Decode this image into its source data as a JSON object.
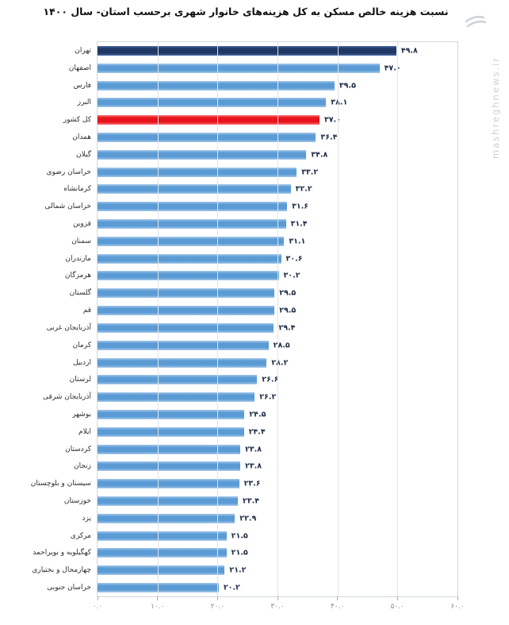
{
  "watermark": {
    "text": "mashreghnews.ir"
  },
  "colors": {
    "bar_blue": "#5B9BD5",
    "bar_navy": "#1F3864",
    "bar_red": "#E8131B",
    "value_label": "#1C2A45",
    "gridline": "#E0E4E8",
    "tick_label": "#8B9096"
  },
  "chart_data": {
    "type": "bar",
    "orientation": "horizontal",
    "title": "نسبت هزینه خالص مسکن به کل هزینه‌های خانوار شهری برحسب استان- سال ۱۴۰۰",
    "xlabel": "",
    "ylabel": "",
    "xlim": [
      0,
      60
    ],
    "grid": true,
    "x_ticks": [
      0,
      10,
      20,
      30,
      40,
      50,
      60
    ],
    "x_tick_labels": [
      "۰.۰",
      "۱۰.۰",
      "۲۰.۰",
      "۳۰.۰",
      "۴۰.۰",
      "۵۰.۰",
      "۶۰.۰"
    ],
    "rows": [
      {
        "label": "تهران",
        "value": 49.8,
        "display": "۴۹.۸",
        "color": "navy"
      },
      {
        "label": "اصفهان",
        "value": 47.0,
        "display": "۴۷.۰",
        "color": "blue"
      },
      {
        "label": "فارس",
        "value": 39.5,
        "display": "۳۹.۵",
        "color": "blue"
      },
      {
        "label": "البرز",
        "value": 38.1,
        "display": "۳۸.۱",
        "color": "blue"
      },
      {
        "label": "کل کشور",
        "value": 37.0,
        "display": "۳۷.۰",
        "color": "red"
      },
      {
        "label": "همدان",
        "value": 36.4,
        "display": "۳۶.۴",
        "color": "blue"
      },
      {
        "label": "گیلان",
        "value": 34.8,
        "display": "۳۴.۸",
        "color": "blue"
      },
      {
        "label": "خراسان رضوی",
        "value": 33.2,
        "display": "۳۳.۲",
        "color": "blue"
      },
      {
        "label": "کرمانشاه",
        "value": 32.2,
        "display": "۳۲.۲",
        "color": "blue"
      },
      {
        "label": "خراسان شمالی",
        "value": 31.6,
        "display": "۳۱.۶",
        "color": "blue"
      },
      {
        "label": "قزوین",
        "value": 31.4,
        "display": "۳۱.۴",
        "color": "blue"
      },
      {
        "label": "سمنان",
        "value": 31.1,
        "display": "۳۱.۱",
        "color": "blue"
      },
      {
        "label": "مازندران",
        "value": 30.6,
        "display": "۳۰.۶",
        "color": "blue"
      },
      {
        "label": "هرمزگان",
        "value": 30.2,
        "display": "۳۰.۲",
        "color": "blue"
      },
      {
        "label": "گلستان",
        "value": 29.5,
        "display": "۲۹.۵",
        "color": "blue"
      },
      {
        "label": "قم",
        "value": 29.5,
        "display": "۲۹.۵",
        "color": "blue"
      },
      {
        "label": "آذربایجان غربی",
        "value": 29.4,
        "display": "۲۹.۴",
        "color": "blue"
      },
      {
        "label": "کرمان",
        "value": 28.5,
        "display": "۲۸.۵",
        "color": "blue"
      },
      {
        "label": "اردبیل",
        "value": 28.2,
        "display": "۲۸.۲",
        "color": "blue"
      },
      {
        "label": "لرستان",
        "value": 26.6,
        "display": "۲۶.۶",
        "color": "blue"
      },
      {
        "label": "آذربایجان شرقی",
        "value": 26.2,
        "display": "۲۶.۲",
        "color": "blue"
      },
      {
        "label": "بوشهر",
        "value": 24.5,
        "display": "۲۴.۵",
        "color": "blue"
      },
      {
        "label": "ایلام",
        "value": 24.4,
        "display": "۲۴.۴",
        "color": "blue"
      },
      {
        "label": "کردستان",
        "value": 23.8,
        "display": "۲۳.۸",
        "color": "blue"
      },
      {
        "label": "زنجان",
        "value": 23.8,
        "display": "۲۳.۸",
        "color": "blue"
      },
      {
        "label": "سیستان و بلوچستان",
        "value": 23.6,
        "display": "۲۳.۶",
        "color": "blue"
      },
      {
        "label": "خوزستان",
        "value": 23.4,
        "display": "۲۳.۴",
        "color": "blue"
      },
      {
        "label": "یزد",
        "value": 22.9,
        "display": "۲۲.۹",
        "color": "blue"
      },
      {
        "label": "مرکزی",
        "value": 21.5,
        "display": "۲۱.۵",
        "color": "blue"
      },
      {
        "label": "کهگیلویه و بویراحمد",
        "value": 21.5,
        "display": "۲۱.۵",
        "color": "blue"
      },
      {
        "label": "چهارمحال و بختیاری",
        "value": 21.2,
        "display": "۲۱.۲",
        "color": "blue"
      },
      {
        "label": "خراسان جنوبی",
        "value": 20.2,
        "display": "۲۰.۲",
        "color": "blue"
      }
    ]
  }
}
